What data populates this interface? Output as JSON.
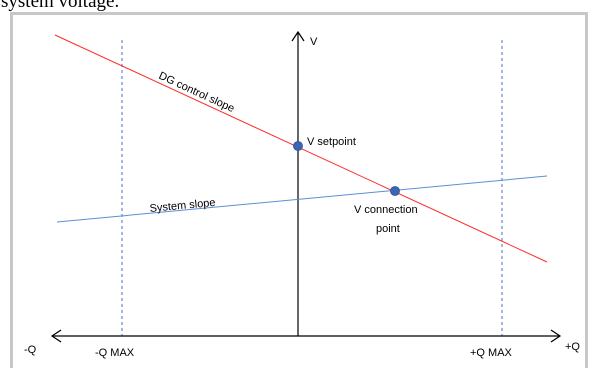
{
  "caption_fragment": "system voltage.",
  "axes": {
    "v_label": "V",
    "q_pos_label": "+Q",
    "q_neg_label": "-Q",
    "q_max_pos_label": "+Q MAX",
    "q_max_neg_label": "-Q MAX"
  },
  "lines": {
    "dg_control_slope": "DG control slope",
    "system_slope": "System slope"
  },
  "points": {
    "v_setpoint": "V setpoint",
    "v_connection_line1": "V connection",
    "v_connection_line2": "point"
  },
  "colors": {
    "dg_line": "#ff2a2a",
    "system_line": "#5b8fd6",
    "dashed_line": "#4472c4",
    "point_fill": "#3b66b5",
    "axis": "#000000",
    "frame_border": "#c8c8c8"
  }
}
